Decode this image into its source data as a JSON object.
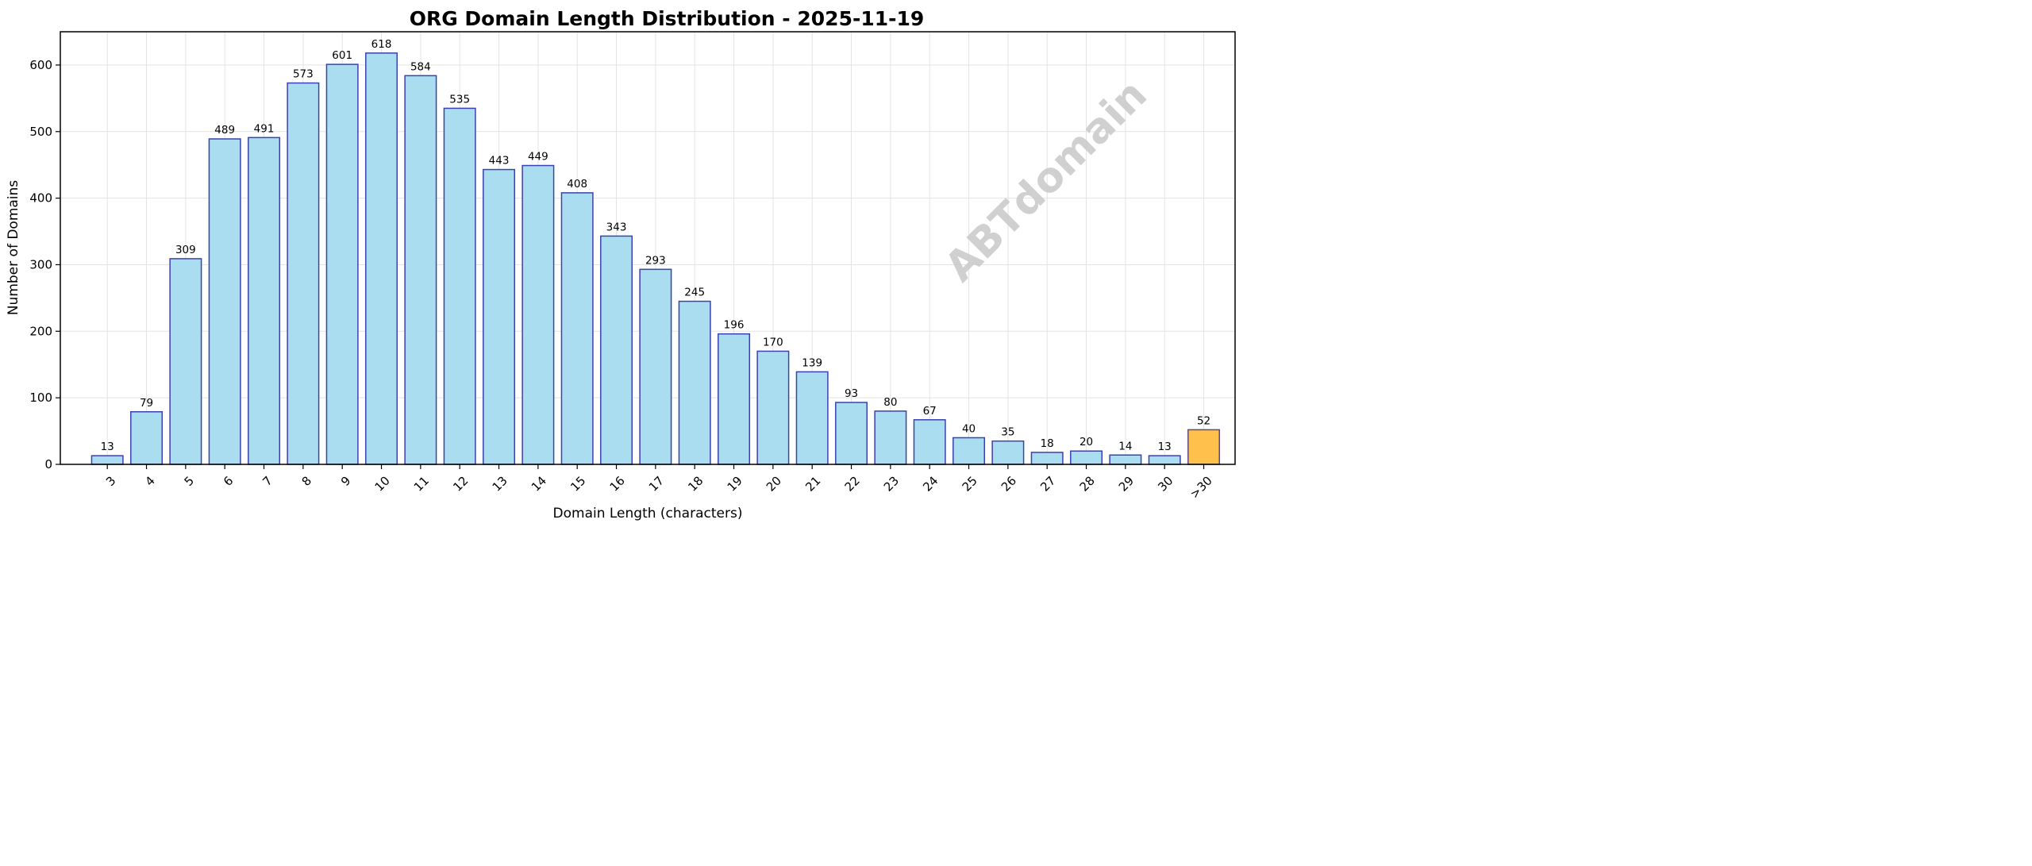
{
  "chart_data": {
    "type": "bar",
    "title": "ORG Domain Length Distribution - 2025-11-19",
    "xlabel": "Domain Length (characters)",
    "ylabel": "Number of Domains",
    "categories": [
      "3",
      "4",
      "5",
      "6",
      "7",
      "8",
      "9",
      "10",
      "11",
      "12",
      "13",
      "14",
      "15",
      "16",
      "17",
      "18",
      "19",
      "20",
      "21",
      "22",
      "23",
      "24",
      "25",
      "26",
      "27",
      "28",
      "29",
      "30",
      ">30"
    ],
    "values": [
      13,
      79,
      309,
      489,
      491,
      573,
      601,
      618,
      584,
      535,
      443,
      449,
      408,
      343,
      293,
      245,
      196,
      170,
      139,
      93,
      80,
      67,
      40,
      35,
      18,
      20,
      14,
      13,
      52
    ],
    "ylim": [
      0,
      650
    ],
    "yticks": [
      0,
      100,
      200,
      300,
      400,
      500,
      600
    ],
    "grid": true,
    "watermark": "ABTdomain",
    "colors": {
      "bar_fill": "#abddf1",
      "bar_edge": "#3b41b0",
      "highlight_fill": "#ffc04c",
      "highlight_edge": "#5a4a80",
      "grid": "#e3e3e3",
      "watermark": "#c8c8c8"
    },
    "highlight_category": ">30"
  }
}
